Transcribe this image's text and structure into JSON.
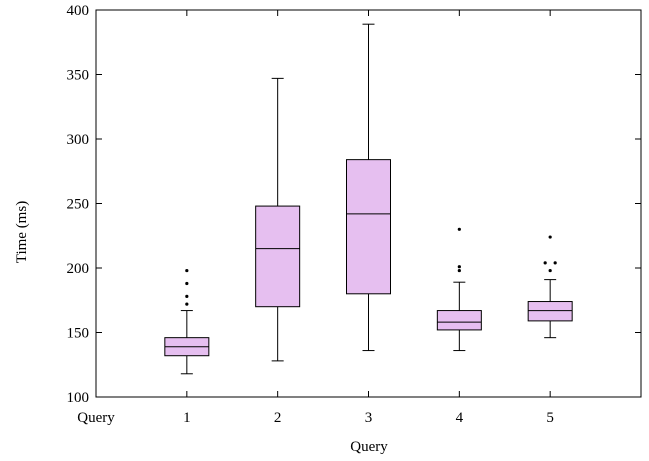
{
  "chart_data": {
    "type": "box",
    "title": "",
    "xlabel": "Query",
    "ylabel": "Time (ms)",
    "x_axis_start_label": "Query",
    "ylim": [
      100,
      400
    ],
    "yticks": [
      100,
      150,
      200,
      250,
      300,
      350,
      400
    ],
    "xlim": [
      0,
      6
    ],
    "grid": false,
    "box_color": "#e6bff0",
    "edge_color": "#000000",
    "categories": [
      "1",
      "2",
      "3",
      "4",
      "5"
    ],
    "boxes": [
      {
        "category": "1",
        "min": 118,
        "q1": 132,
        "median": 139,
        "q3": 146,
        "max": 167,
        "outliers": [
          172,
          178,
          188,
          198
        ]
      },
      {
        "category": "2",
        "min": 128,
        "q1": 170,
        "median": 215,
        "q3": 248,
        "max": 347,
        "outliers": []
      },
      {
        "category": "3",
        "min": 136,
        "q1": 180,
        "median": 242,
        "q3": 284,
        "max": 389,
        "outliers": []
      },
      {
        "category": "4",
        "min": 136,
        "q1": 152,
        "median": 158,
        "q3": 167,
        "max": 189,
        "outliers": [
          198,
          201,
          230
        ]
      },
      {
        "category": "5",
        "min": 146,
        "q1": 159,
        "median": 167,
        "q3": 174,
        "max": 191,
        "outliers": [
          198,
          204,
          204,
          224
        ]
      }
    ]
  }
}
